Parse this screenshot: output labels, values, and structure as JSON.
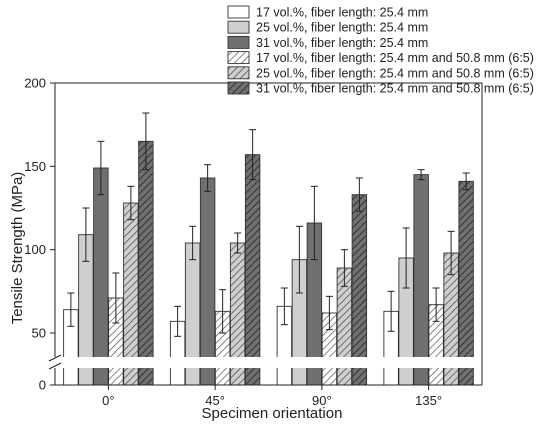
{
  "chart_data": {
    "type": "bar",
    "title": "",
    "xlabel": "Specimen orientation",
    "ylabel": "Tensile Strength (MPa)",
    "categories": [
      "0°",
      "45°",
      "90°",
      "135°"
    ],
    "ylim": [
      0,
      200
    ],
    "axis_break": [
      10,
      38
    ],
    "yticks": [
      0,
      50,
      100,
      150,
      200
    ],
    "grid": false,
    "legend_position": "top-right",
    "series": [
      {
        "name": "17 vol.%, fiber length: 25.4 mm",
        "values": [
          64,
          57,
          66,
          63
        ],
        "errors": [
          10,
          9,
          11,
          12
        ],
        "fill": "#ffffff",
        "hatch": false
      },
      {
        "name": "25 vol.%, fiber length: 25.4 mm",
        "values": [
          109,
          104,
          94,
          95
        ],
        "errors": [
          16,
          10,
          20,
          18
        ],
        "fill": "#cfcfcf",
        "hatch": false
      },
      {
        "name": "31 vol.%, fiber length: 25.4 mm",
        "values": [
          149,
          143,
          116,
          145
        ],
        "errors": [
          16,
          8,
          22,
          3
        ],
        "fill": "#707070",
        "hatch": false
      },
      {
        "name": "17 vol.%, fiber length: 25.4 mm and 50.8 mm (6:5)",
        "values": [
          71,
          63,
          62,
          67
        ],
        "errors": [
          15,
          13,
          10,
          10
        ],
        "fill": "#ffffff",
        "hatch": true
      },
      {
        "name": "25 vol.%, fiber length: 25.4 mm and 50.8 mm (6:5)",
        "values": [
          128,
          104,
          89,
          98
        ],
        "errors": [
          10,
          6,
          11,
          13
        ],
        "fill": "#cfcfcf",
        "hatch": true
      },
      {
        "name": "31 vol.%, fiber length: 25.4 mm and 50.8 mm (6:5)",
        "values": [
          165,
          157,
          133,
          141
        ],
        "errors": [
          17,
          15,
          10,
          5
        ],
        "fill": "#707070",
        "hatch": true
      }
    ]
  }
}
